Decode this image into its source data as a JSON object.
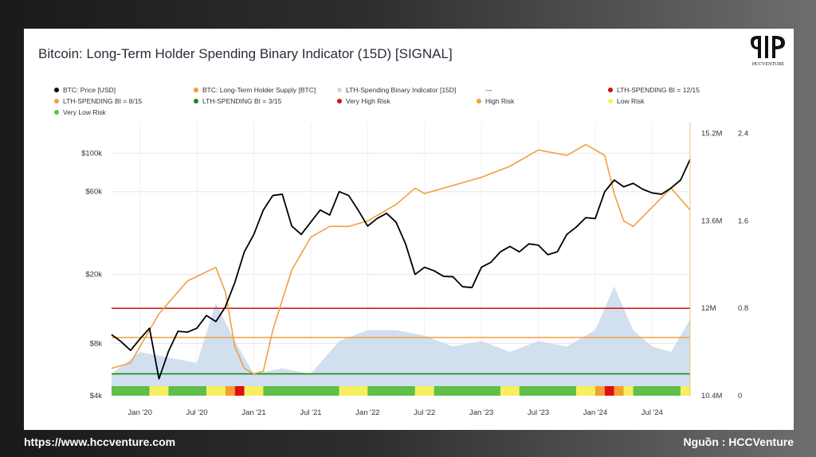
{
  "chart_data": {
    "type": "line",
    "title": "Bitcoin: Long-Term Holder Spending Binary Indicator (15D) [SIGNAL]",
    "x_tick_labels": [
      "Jan '20",
      "Jul '20",
      "Jan '21",
      "Jul '21",
      "Jan '22",
      "Jul '22",
      "Jan '23",
      "Jul '23",
      "Jan '24",
      "Jul '24"
    ],
    "y_left_ticks": [
      "$4k",
      "$8k",
      "$20k",
      "$60k",
      "$100k"
    ],
    "y_left_tick_values": [
      4000,
      8000,
      20000,
      60000,
      100000
    ],
    "y_left_scale": "log",
    "y_mid_ticks": [
      "10.4M",
      "12M",
      "13.6M",
      "15.2M"
    ],
    "y_mid_tick_values": [
      10.4,
      12.0,
      13.6,
      15.2
    ],
    "y_right_ticks": [
      "0",
      "0.8",
      "1.6",
      "2.4"
    ],
    "y_right_tick_values": [
      0,
      0.8,
      1.6,
      2.4
    ],
    "legend": [
      {
        "label": "BTC: Price [USD]",
        "color": "#000000"
      },
      {
        "label": "BTC: Long-Term Holder Supply [BTC]",
        "color": "#f0a040"
      },
      {
        "label": "LTH-Spending Binary Indicator [15D]",
        "color": "#c9d9ec"
      },
      {
        "label": "---",
        "color": "#ffffff"
      },
      {
        "label": "LTH-SPENDING BI = 12/15",
        "color": "#cc1010"
      },
      {
        "label": "LTH-SPENDING BI = 8/15",
        "color": "#f0a040"
      },
      {
        "label": "LTH-SPENDING BI = 3/15",
        "color": "#1a8a1a"
      },
      {
        "label": "Very High Risk",
        "color": "#dd1010"
      },
      {
        "label": "High Risk",
        "color": "#f5a030"
      },
      {
        "label": "Low Risk",
        "color": "#f7ef60"
      },
      {
        "label": "Very Low Risk",
        "color": "#5fbf4a"
      }
    ],
    "threshold_lines": [
      {
        "label": "LTH-SPENDING BI = 12/15",
        "value": 0.8,
        "color": "#cc1010"
      },
      {
        "label": "LTH-SPENDING BI = 8/15",
        "value": 0.533,
        "color": "#f0a040"
      },
      {
        "label": "LTH-SPENDING BI = 3/15",
        "value": 0.2,
        "color": "#1a8a1a"
      }
    ],
    "series": [
      {
        "name": "BTC: Price [USD]",
        "axis": "left",
        "color": "#000000",
        "x": [
          "2019-10",
          "2019-11",
          "2019-12",
          "2020-01",
          "2020-02",
          "2020-03",
          "2020-04",
          "2020-05",
          "2020-06",
          "2020-07",
          "2020-08",
          "2020-09",
          "2020-10",
          "2020-11",
          "2020-12",
          "2021-01",
          "2021-02",
          "2021-03",
          "2021-04",
          "2021-05",
          "2021-06",
          "2021-07",
          "2021-08",
          "2021-09",
          "2021-10",
          "2021-11",
          "2021-12",
          "2022-01",
          "2022-02",
          "2022-03",
          "2022-04",
          "2022-05",
          "2022-06",
          "2022-07",
          "2022-08",
          "2022-09",
          "2022-10",
          "2022-11",
          "2022-12",
          "2023-01",
          "2023-02",
          "2023-03",
          "2023-04",
          "2023-05",
          "2023-06",
          "2023-07",
          "2023-08",
          "2023-09",
          "2023-10",
          "2023-11",
          "2023-12",
          "2024-01",
          "2024-02",
          "2024-03",
          "2024-04",
          "2024-05",
          "2024-06",
          "2024-07",
          "2024-08",
          "2024-09",
          "2024-10",
          "2024-11"
        ],
        "values": [
          9000,
          8200,
          7300,
          8500,
          9800,
          5000,
          7200,
          9400,
          9300,
          9800,
          11600,
          10700,
          13000,
          18000,
          27000,
          34000,
          47000,
          57000,
          58000,
          38000,
          34000,
          40000,
          47000,
          44000,
          60000,
          57000,
          47000,
          38000,
          42000,
          45000,
          40000,
          30000,
          20000,
          22000,
          21000,
          19500,
          19400,
          17000,
          16800,
          22000,
          23500,
          27000,
          29000,
          27000,
          30000,
          29500,
          26000,
          27000,
          34000,
          37500,
          42500,
          42000,
          60000,
          70000,
          64000,
          67000,
          62000,
          59000,
          58000,
          63000,
          70000,
          92000
        ]
      },
      {
        "name": "BTC: Long-Term Holder Supply [BTC]",
        "axis": "mid",
        "color": "#f0a040",
        "x": [
          "2019-10",
          "2019-12",
          "2020-03",
          "2020-06",
          "2020-09",
          "2020-10",
          "2020-11",
          "2020-12",
          "2021-01",
          "2021-02",
          "2021-03",
          "2021-05",
          "2021-07",
          "2021-09",
          "2021-11",
          "2022-01",
          "2022-04",
          "2022-06",
          "2022-07",
          "2022-09",
          "2022-11",
          "2023-01",
          "2023-04",
          "2023-07",
          "2023-10",
          "2023-12",
          "2024-02",
          "2024-03",
          "2024-04",
          "2024-05",
          "2024-07",
          "2024-09",
          "2024-10",
          "2024-11"
        ],
        "values": [
          10.9,
          11.0,
          11.9,
          12.5,
          12.75,
          12.3,
          11.3,
          10.9,
          10.8,
          10.85,
          11.6,
          12.7,
          13.3,
          13.5,
          13.5,
          13.6,
          13.9,
          14.2,
          14.1,
          14.2,
          14.3,
          14.4,
          14.6,
          14.9,
          14.8,
          15.0,
          14.8,
          14.1,
          13.6,
          13.5,
          13.85,
          14.2,
          14.0,
          13.8
        ]
      },
      {
        "name": "LTH-Spending Binary Indicator [15D]",
        "axis": "right",
        "color": "#c9d9ec",
        "x": [
          "2019-10",
          "2020-01",
          "2020-04",
          "2020-07",
          "2020-09",
          "2020-11",
          "2021-01",
          "2021-04",
          "2021-07",
          "2021-10",
          "2022-01",
          "2022-04",
          "2022-07",
          "2022-10",
          "2023-01",
          "2023-04",
          "2023-07",
          "2023-10",
          "2024-01",
          "2024-03",
          "2024-05",
          "2024-07",
          "2024-09",
          "2024-11"
        ],
        "values": [
          0.2,
          0.4,
          0.35,
          0.3,
          0.85,
          0.5,
          0.2,
          0.25,
          0.2,
          0.5,
          0.6,
          0.6,
          0.55,
          0.45,
          0.5,
          0.4,
          0.5,
          0.45,
          0.6,
          1.0,
          0.6,
          0.45,
          0.4,
          0.7
        ]
      }
    ],
    "risk_bar": {
      "legend": [
        "Very High Risk",
        "High Risk",
        "Low Risk",
        "Very Low Risk"
      ],
      "segments": [
        {
          "from": "2019-10",
          "to": "2020-02",
          "level": "Very Low Risk"
        },
        {
          "from": "2020-02",
          "to": "2020-04",
          "level": "Low Risk"
        },
        {
          "from": "2020-04",
          "to": "2020-08",
          "level": "Very Low Risk"
        },
        {
          "from": "2020-08",
          "to": "2020-10",
          "level": "Low Risk"
        },
        {
          "from": "2020-10",
          "to": "2020-11",
          "level": "High Risk"
        },
        {
          "from": "2020-11",
          "to": "2020-12",
          "level": "Very High Risk"
        },
        {
          "from": "2020-12",
          "to": "2021-02",
          "level": "Low Risk"
        },
        {
          "from": "2021-02",
          "to": "2021-10",
          "level": "Very Low Risk"
        },
        {
          "from": "2021-10",
          "to": "2022-01",
          "level": "Low Risk"
        },
        {
          "from": "2022-01",
          "to": "2022-06",
          "level": "Very Low Risk"
        },
        {
          "from": "2022-06",
          "to": "2022-08",
          "level": "Low Risk"
        },
        {
          "from": "2022-08",
          "to": "2023-03",
          "level": "Very Low Risk"
        },
        {
          "from": "2023-03",
          "to": "2023-05",
          "level": "Low Risk"
        },
        {
          "from": "2023-05",
          "to": "2023-11",
          "level": "Very Low Risk"
        },
        {
          "from": "2023-11",
          "to": "2024-01",
          "level": "Low Risk"
        },
        {
          "from": "2024-01",
          "to": "2024-02",
          "level": "High Risk"
        },
        {
          "from": "2024-02",
          "to": "2024-03",
          "level": "Very High Risk"
        },
        {
          "from": "2024-03",
          "to": "2024-04",
          "level": "High Risk"
        },
        {
          "from": "2024-04",
          "to": "2024-05",
          "level": "Low Risk"
        },
        {
          "from": "2024-05",
          "to": "2024-10",
          "level": "Very Low Risk"
        },
        {
          "from": "2024-10",
          "to": "2024-11",
          "level": "Low Risk"
        }
      ]
    },
    "x_range": [
      "2019-10",
      "2024-11"
    ],
    "y_left_range": [
      4000,
      150000
    ],
    "y_mid_range": [
      10.4,
      15.4
    ],
    "y_right_range": [
      0,
      2.5
    ],
    "grid": true
  },
  "footer": {
    "url": "https://www.hccventure.com",
    "source": "Nguồn : HCCVenture"
  },
  "logo": {
    "text": "HCCVENTURE"
  },
  "colors": {
    "price": "#000000",
    "lth_supply": "#f0a040",
    "bi": "#c9d9ec",
    "very_high": "#dd1010",
    "high": "#f5a030",
    "low": "#f7ef60",
    "very_low": "#5fbf4a"
  }
}
